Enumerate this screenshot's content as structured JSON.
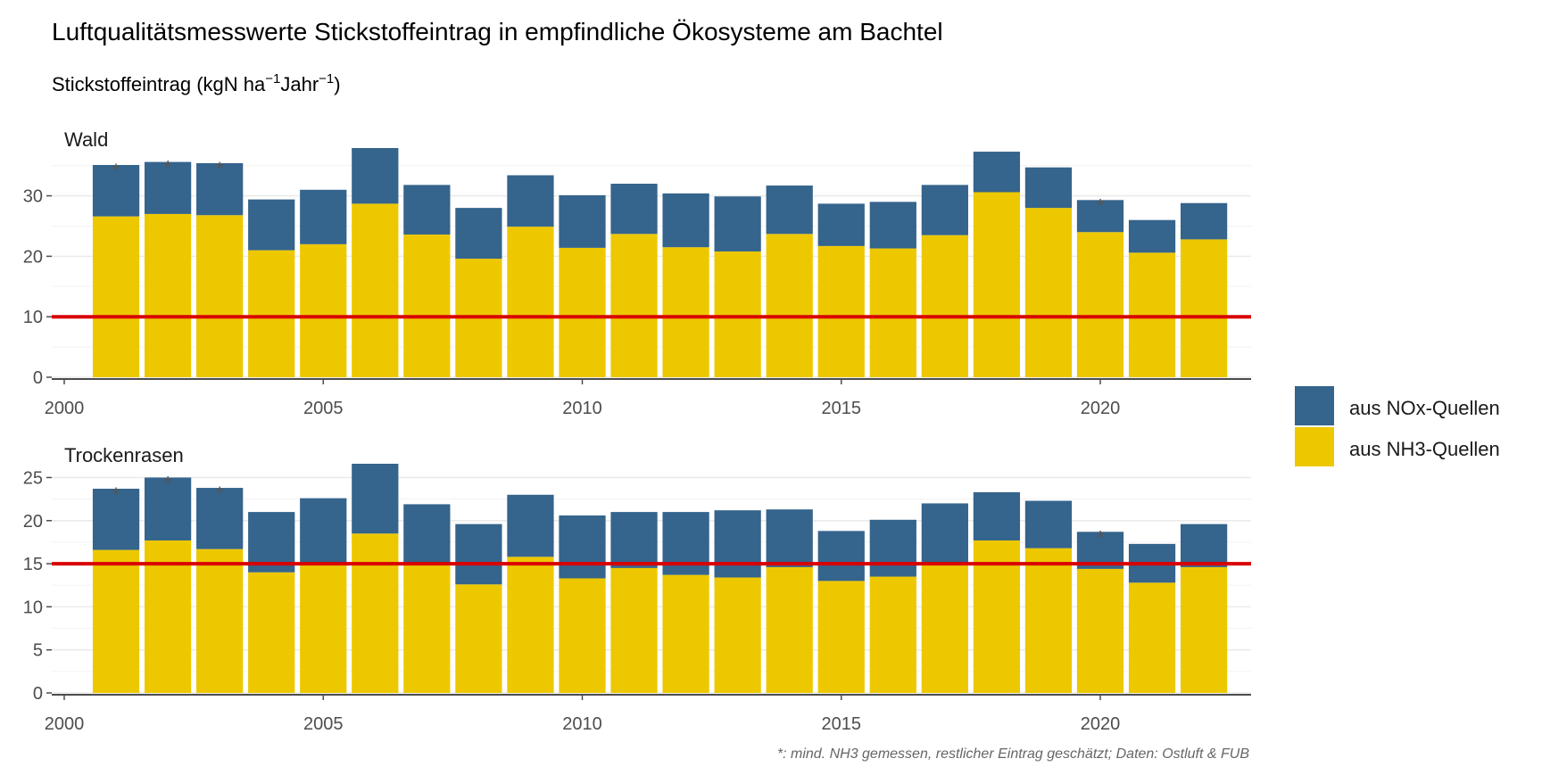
{
  "title": "Luftqualitätsmesswerte Stickstoffeintrag in empfindliche Ökosysteme am Bachtel",
  "subtitle": {
    "text": "Stickstoffeintrag (kgN ha",
    "sup1": "−1",
    "mid": "Jahr",
    "sup2": "−1",
    "end": ")"
  },
  "caption": "*: mind. NH3 gemessen, restlicher Eintrag geschätzt; Daten: Ostluft & FUB",
  "legend": {
    "items": [
      {
        "label": "aus NOx-Quellen",
        "color": "#35648c"
      },
      {
        "label": "aus NH3-Quellen",
        "color": "#edc800"
      }
    ]
  },
  "colors": {
    "nox": "#35648c",
    "nh3": "#edc800",
    "critical_line": "#d90000",
    "gridline": "#ebebeb",
    "axis": "#4d4d4d"
  },
  "chart_data": [
    {
      "type": "bar",
      "stacked": true,
      "panel": "Wald",
      "x_ticks": [
        2000,
        2005,
        2010,
        2015,
        2020
      ],
      "y_ticks": [
        0,
        10,
        20,
        30
      ],
      "ylim": [
        0,
        37.9
      ],
      "xlim": [
        2000,
        2022.5
      ],
      "critical_load": 10,
      "categories": [
        2001,
        2002,
        2003,
        2004,
        2005,
        2006,
        2007,
        2008,
        2009,
        2010,
        2011,
        2012,
        2013,
        2014,
        2015,
        2016,
        2017,
        2018,
        2019,
        2020,
        2021,
        2022
      ],
      "series": [
        {
          "name": "aus NH3-Quellen",
          "values": [
            26.6,
            27.0,
            26.8,
            21.0,
            22.0,
            28.7,
            23.6,
            19.6,
            24.9,
            21.4,
            23.7,
            21.5,
            20.8,
            23.7,
            21.7,
            21.3,
            23.5,
            30.6,
            28.0,
            24.0,
            20.6,
            22.8
          ]
        },
        {
          "name": "aus NOx-Quellen",
          "values": [
            8.5,
            8.6,
            8.6,
            8.4,
            9.0,
            9.2,
            8.2,
            8.4,
            8.5,
            8.7,
            8.3,
            8.9,
            9.1,
            8.0,
            7.0,
            7.7,
            8.3,
            6.7,
            6.7,
            5.3,
            5.4,
            6.0
          ]
        }
      ],
      "stars": [
        2001,
        2002,
        2003,
        2020
      ]
    },
    {
      "type": "bar",
      "stacked": true,
      "panel": "Trockenrasen",
      "x_ticks": [
        2000,
        2005,
        2010,
        2015,
        2020
      ],
      "y_ticks": [
        0,
        5,
        10,
        15,
        20,
        25
      ],
      "ylim": [
        0,
        26.6
      ],
      "xlim": [
        2000,
        2022.5
      ],
      "critical_load": 15,
      "categories": [
        2001,
        2002,
        2003,
        2004,
        2005,
        2006,
        2007,
        2008,
        2009,
        2010,
        2011,
        2012,
        2013,
        2014,
        2015,
        2016,
        2017,
        2018,
        2019,
        2020,
        2021,
        2022
      ],
      "series": [
        {
          "name": "aus NH3-Quellen",
          "values": [
            16.6,
            17.7,
            16.7,
            14.0,
            15.0,
            18.5,
            15.0,
            12.6,
            15.8,
            13.3,
            14.5,
            13.7,
            13.4,
            14.6,
            13.0,
            13.5,
            15.0,
            17.7,
            16.8,
            14.4,
            12.8,
            14.6
          ]
        },
        {
          "name": "aus NOx-Quellen",
          "values": [
            7.1,
            7.3,
            7.1,
            7.0,
            7.6,
            8.1,
            6.9,
            7.0,
            7.2,
            7.3,
            6.5,
            7.3,
            7.8,
            6.7,
            5.8,
            6.6,
            7.0,
            5.6,
            5.5,
            4.3,
            4.5,
            5.0
          ]
        }
      ],
      "stars": [
        2001,
        2002,
        2003,
        2020
      ]
    }
  ]
}
